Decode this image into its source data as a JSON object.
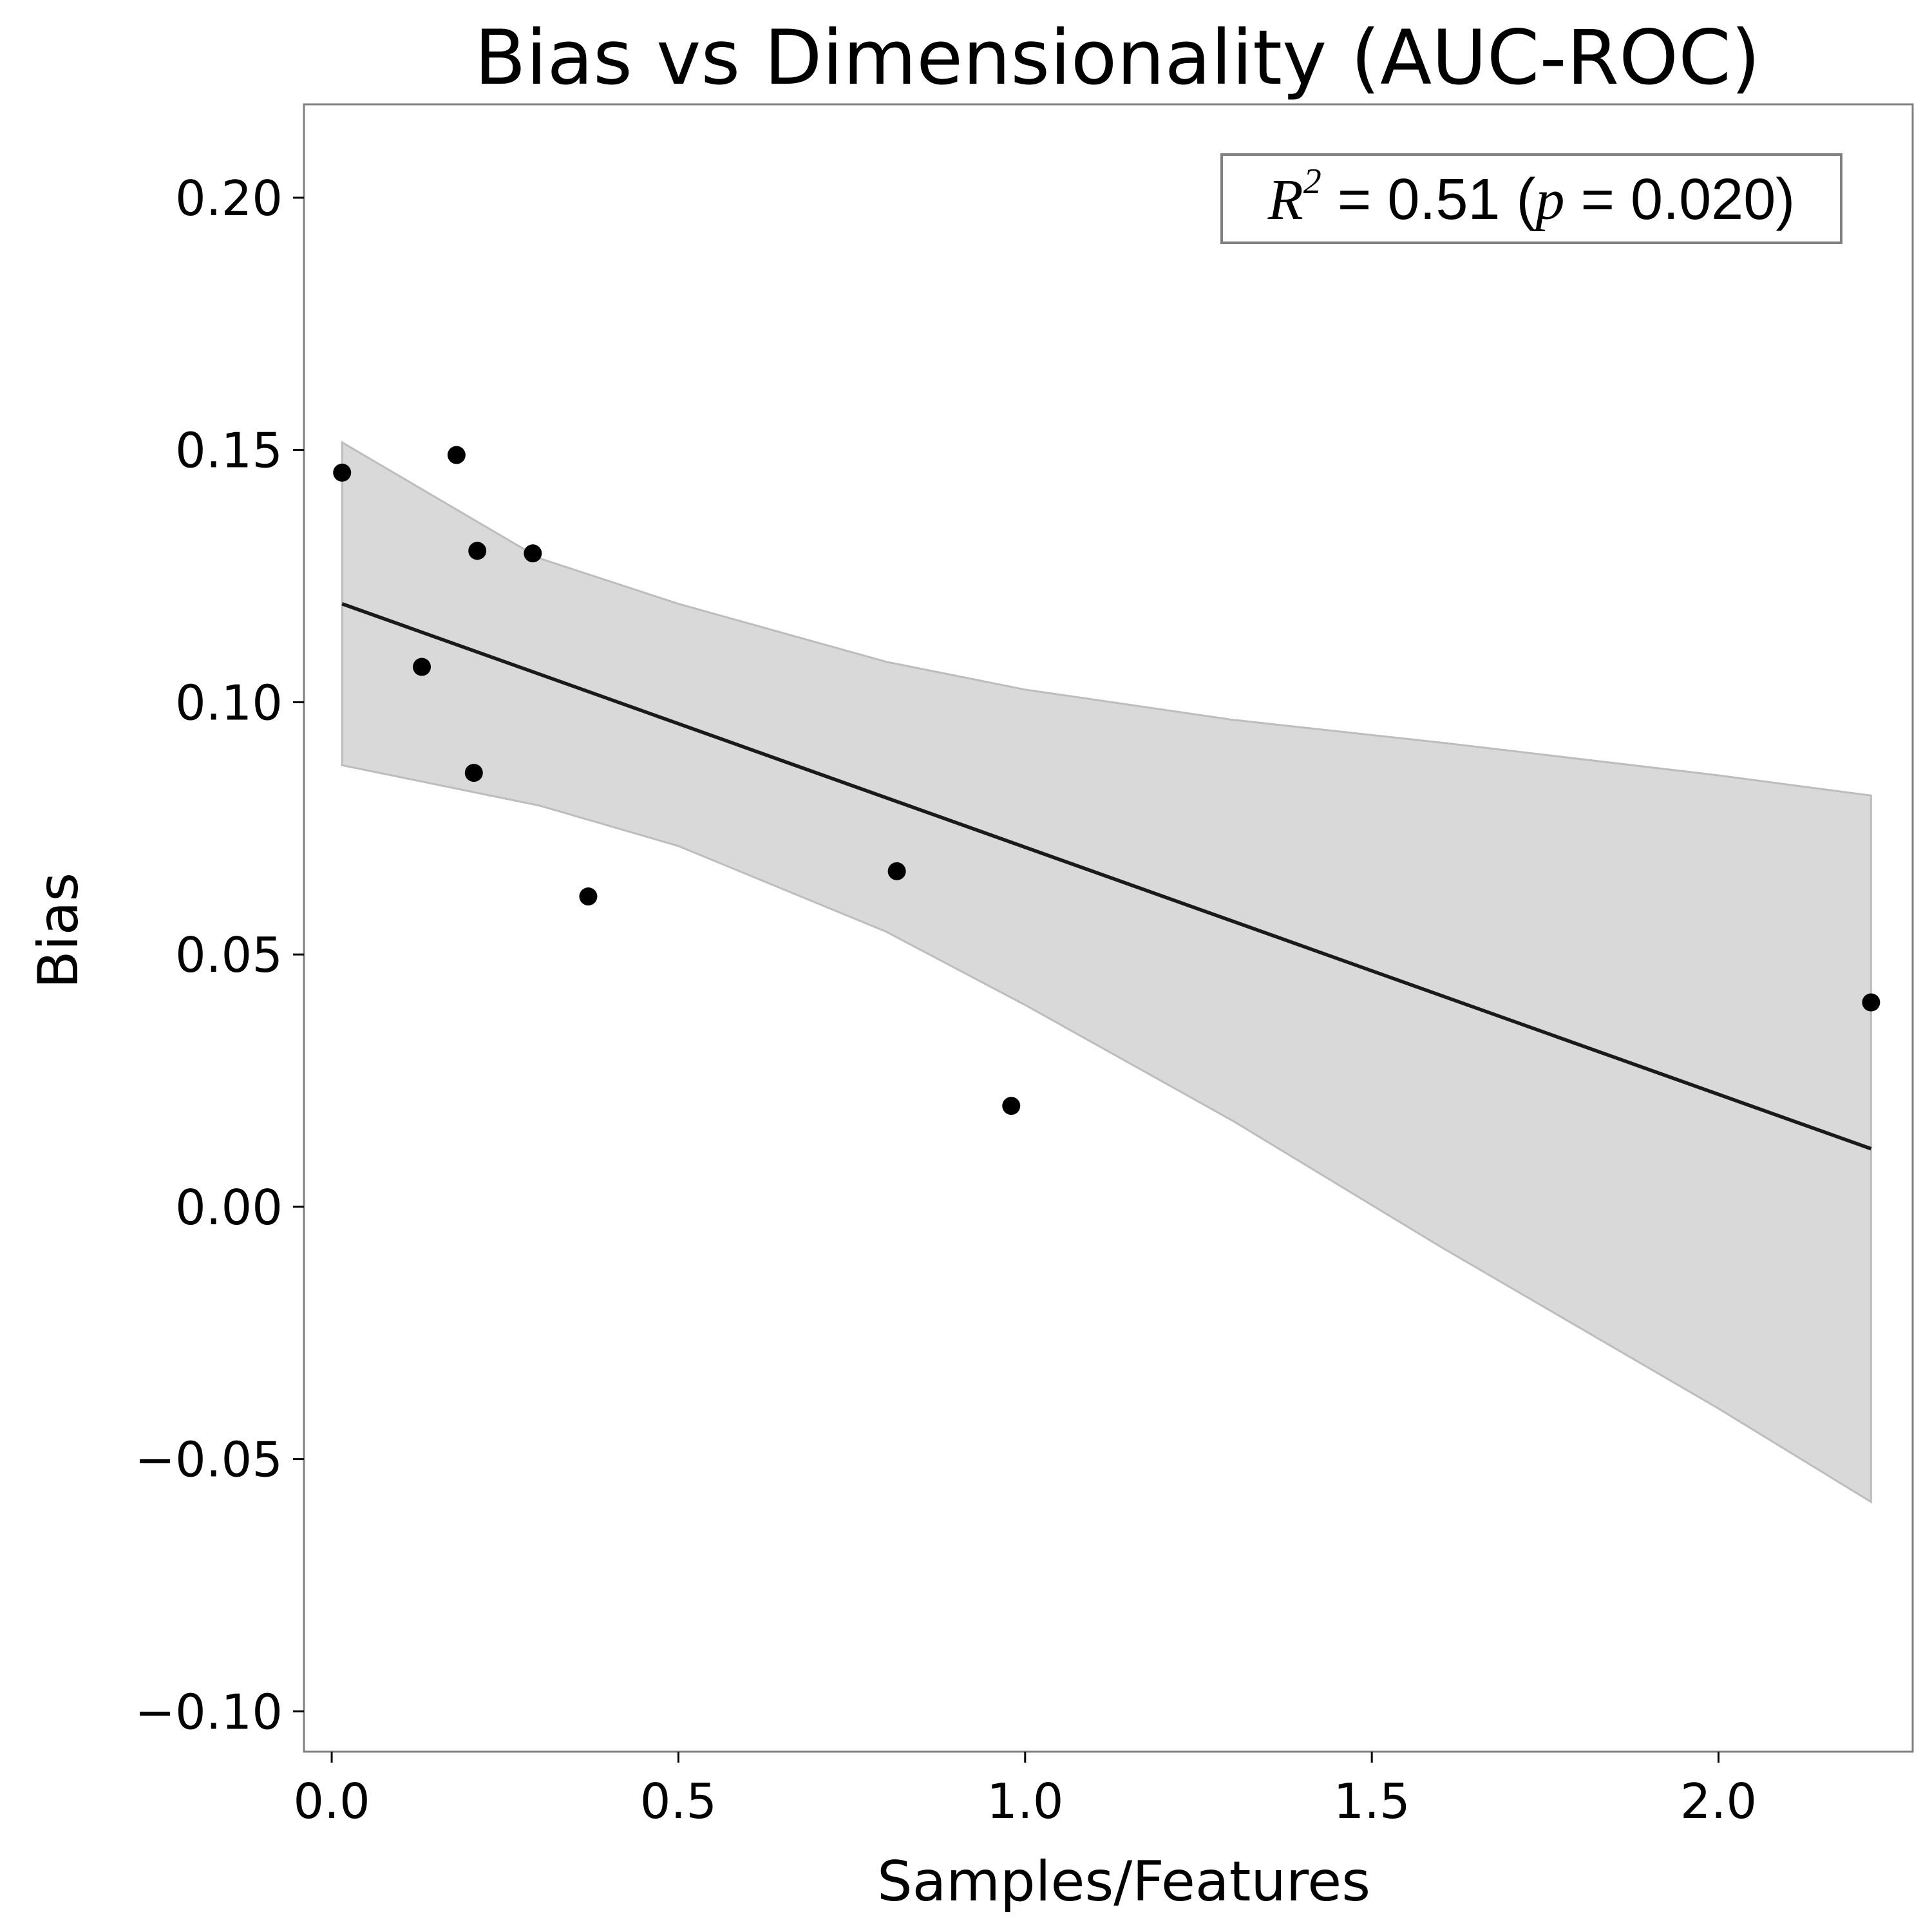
{
  "chart_data": {
    "type": "scatter",
    "title": "Bias vs Dimensionality (AUC-ROC)",
    "xlabel": "Samples/Features",
    "ylabel": "Bias",
    "xlim": [
      -0.04,
      2.28
    ],
    "ylim": [
      -0.108,
      0.2185
    ],
    "x_ticks": [
      0.0,
      0.5,
      1.0,
      1.5,
      2.0
    ],
    "x_tick_labels": [
      "0.0",
      "0.5",
      "1.0",
      "1.5",
      "2.0"
    ],
    "y_ticks": [
      0.2,
      0.15,
      0.1,
      0.05,
      0.0,
      -0.05,
      -0.1
    ],
    "y_tick_labels": [
      "0.20",
      "0.15",
      "0.10",
      "0.05",
      "0.00",
      "−0.05",
      "−0.10"
    ],
    "grid": false,
    "points": [
      {
        "x": 0.015,
        "y": 0.1455
      },
      {
        "x": 0.18,
        "y": 0.149
      },
      {
        "x": 0.21,
        "y": 0.13
      },
      {
        "x": 0.29,
        "y": 0.1295
      },
      {
        "x": 0.13,
        "y": 0.107
      },
      {
        "x": 0.205,
        "y": 0.086
      },
      {
        "x": 0.37,
        "y": 0.0615
      },
      {
        "x": 0.815,
        "y": 0.0665
      },
      {
        "x": 0.98,
        "y": 0.02
      },
      {
        "x": 2.22,
        "y": 0.0405
      }
    ],
    "regression_line": {
      "x": [
        0.015,
        2.22
      ],
      "y": [
        0.1195,
        0.0115
      ]
    },
    "confidence_band": {
      "x": [
        0.015,
        0.3,
        0.5,
        0.8,
        1.0,
        1.3,
        1.6,
        2.0,
        2.22
      ],
      "upper": [
        0.1515,
        0.1285,
        0.1195,
        0.108,
        0.1025,
        0.0965,
        0.092,
        0.0855,
        0.0815
      ],
      "lower": [
        0.0875,
        0.0795,
        0.0715,
        0.0545,
        0.04,
        0.017,
        -0.008,
        -0.04,
        -0.0585
      ]
    },
    "colors": {
      "points": "#000000",
      "line": "#1a1a1a",
      "band_fill": "#d9d9d9",
      "band_edge": "#bdbdbd",
      "frame": "#808080"
    },
    "annotation": {
      "r2_symbol": "R",
      "r2_exponent": "2",
      "r2_value": " = 0.51 (",
      "p_symbol": "p",
      "p_value": " = 0.020)",
      "placement": "top-right"
    }
  }
}
